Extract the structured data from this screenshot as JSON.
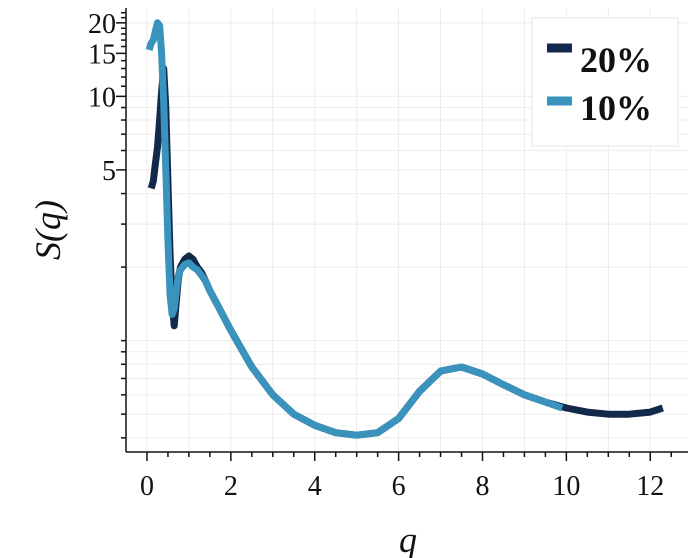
{
  "chart_data": {
    "type": "line",
    "xlabel": "q",
    "ylabel": "S(q)",
    "xlim": [
      -0.5,
      12.9
    ],
    "ylim": [
      0.35,
      23
    ],
    "yscale": "log",
    "grid": true,
    "legend_position": "top-right",
    "x_ticks": [
      0,
      2,
      4,
      6,
      8,
      10,
      12
    ],
    "x_tick_labels": [
      "0",
      "2",
      "4",
      "6",
      "8",
      "10",
      "12"
    ],
    "y_ticks": [
      5,
      10,
      15,
      20
    ],
    "y_tick_labels": [
      "5",
      "10",
      "15",
      "20"
    ],
    "series": [
      {
        "name": "20%",
        "color": "#13294b",
        "x": [
          0.1,
          0.15,
          0.2,
          0.25,
          0.3,
          0.35,
          0.4,
          0.45,
          0.5,
          0.55,
          0.6,
          0.65,
          0.7,
          0.75,
          0.8,
          0.9,
          1.0,
          1.1,
          1.2,
          1.3,
          1.4,
          1.5,
          1.7,
          2.0,
          2.5,
          3.0,
          3.5,
          4.0,
          4.5,
          5.0,
          5.5,
          6.0,
          6.5,
          7.0,
          7.5,
          8.0,
          8.5,
          9.0,
          9.5,
          10.0,
          10.5,
          11.0,
          11.5,
          12.0,
          12.3
        ],
        "y": [
          4.2,
          4.5,
          5.3,
          6.2,
          8.0,
          10.5,
          13.0,
          9.0,
          4.5,
          2.3,
          1.45,
          1.15,
          1.45,
          1.8,
          2.0,
          2.15,
          2.22,
          2.15,
          2.0,
          1.9,
          1.75,
          1.6,
          1.38,
          1.1,
          0.78,
          0.6,
          0.5,
          0.45,
          0.42,
          0.41,
          0.42,
          0.48,
          0.62,
          0.75,
          0.78,
          0.73,
          0.66,
          0.6,
          0.56,
          0.53,
          0.51,
          0.5,
          0.5,
          0.51,
          0.53
        ]
      },
      {
        "name": "10%",
        "color": "#3a93bd",
        "x": [
          0.05,
          0.1,
          0.15,
          0.2,
          0.25,
          0.3,
          0.35,
          0.4,
          0.45,
          0.5,
          0.55,
          0.6,
          0.65,
          0.7,
          0.75,
          0.8,
          0.9,
          1.0,
          1.1,
          1.2,
          1.3,
          1.4,
          1.5,
          1.7,
          2.0,
          2.5,
          3.0,
          3.5,
          4.0,
          4.5,
          5.0,
          5.5,
          6.0,
          6.5,
          7.0,
          7.5,
          8.0,
          8.5,
          9.0,
          9.5,
          9.9
        ],
        "y": [
          15.5,
          16.5,
          17.0,
          18.5,
          20.0,
          19.5,
          15.0,
          9.5,
          5.0,
          2.6,
          1.55,
          1.28,
          1.35,
          1.6,
          1.85,
          1.95,
          2.05,
          2.08,
          2.0,
          1.95,
          1.85,
          1.75,
          1.6,
          1.38,
          1.1,
          0.78,
          0.6,
          0.5,
          0.45,
          0.42,
          0.41,
          0.42,
          0.48,
          0.62,
          0.75,
          0.78,
          0.73,
          0.66,
          0.6,
          0.56,
          0.53
        ]
      }
    ]
  }
}
